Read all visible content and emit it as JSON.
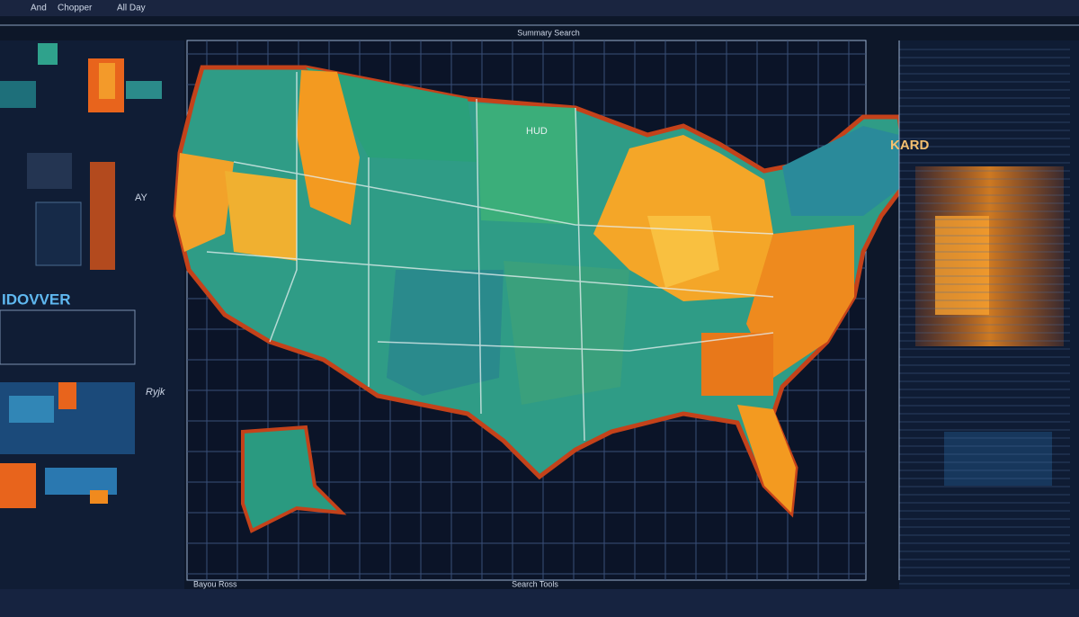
{
  "header": {
    "items": [
      "And",
      "Chopper",
      "All Day"
    ],
    "center": "Summary Search"
  },
  "left_panel": {
    "title": "IDOVVER",
    "caption": "Ryjk",
    "side_label": "AY"
  },
  "map": {
    "labels": [
      "HUD",
      "KARD"
    ]
  },
  "footer": {
    "left": "Bayou Ross",
    "center": "Search Tools"
  }
}
